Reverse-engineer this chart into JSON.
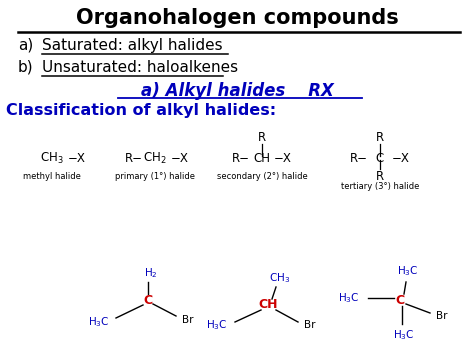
{
  "bg_color": "#ffffff",
  "black": "#000000",
  "blue": "#0000bb",
  "red": "#cc0000",
  "title": "Organohalogen compounds",
  "line_a": "Saturated: alkyl halides",
  "line_b": "Unsaturated: haloalkenes",
  "subtitle": "a) Alkyl halides    RX",
  "classif": "Classification of alkyl halides:"
}
